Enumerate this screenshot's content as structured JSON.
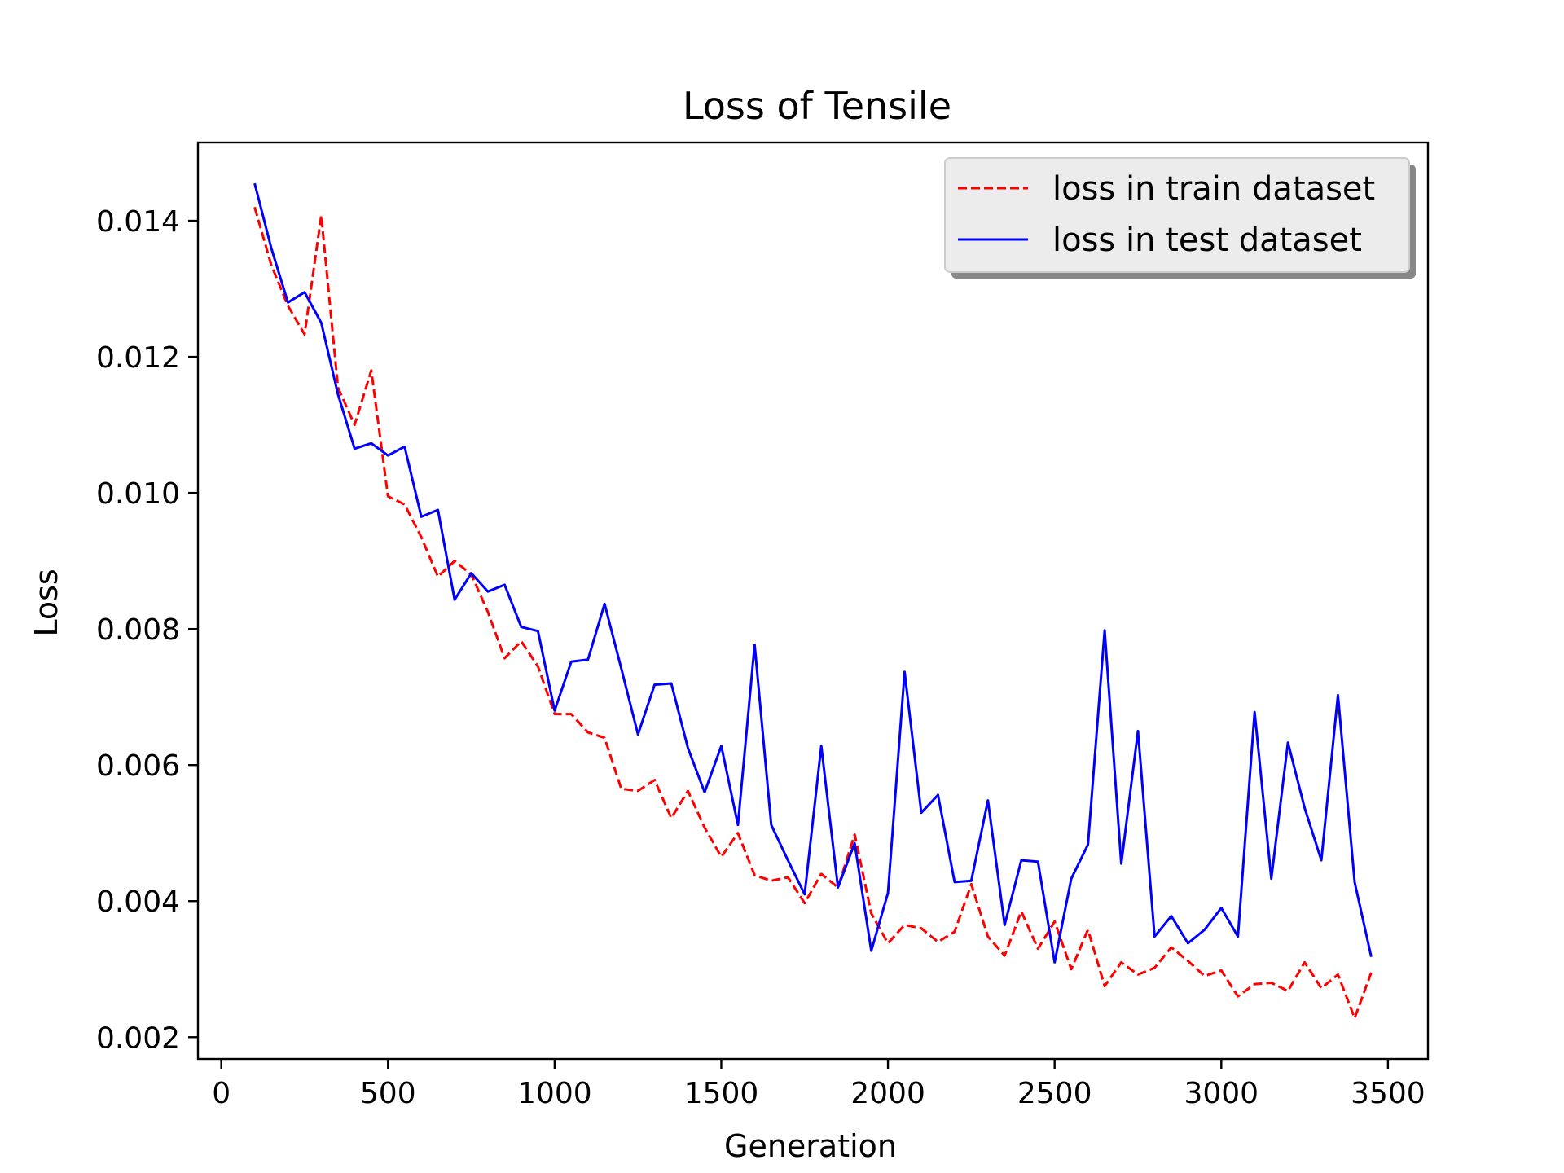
{
  "chart_data": {
    "type": "line",
    "title": "Loss of Tensile",
    "xlabel": "Generation",
    "ylabel": "Loss",
    "xlim": [
      -70,
      3620
    ],
    "ylim": [
      0.00168,
      0.01515
    ],
    "xticks": [
      0,
      500,
      1000,
      1500,
      2000,
      2500,
      3000,
      3500
    ],
    "xtick_labels": [
      "0",
      "500",
      "1000",
      "1500",
      "2000",
      "2500",
      "3000",
      "3500"
    ],
    "yticks": [
      0.002,
      0.004,
      0.006,
      0.008,
      0.01,
      0.012,
      0.014
    ],
    "ytick_labels": [
      "0.002",
      "0.004",
      "0.006",
      "0.008",
      "0.010",
      "0.012",
      "0.014"
    ],
    "grid": false,
    "legend_position": "upper right",
    "x": [
      100,
      150,
      200,
      250,
      300,
      350,
      400,
      450,
      500,
      550,
      600,
      650,
      700,
      750,
      800,
      850,
      900,
      950,
      1000,
      1050,
      1100,
      1150,
      1200,
      1250,
      1300,
      1350,
      1400,
      1450,
      1500,
      1550,
      1600,
      1650,
      1700,
      1750,
      1800,
      1850,
      1900,
      1950,
      2000,
      2050,
      2100,
      2150,
      2200,
      2250,
      2300,
      2350,
      2400,
      2450,
      2500,
      2550,
      2600,
      2650,
      2700,
      2750,
      2800,
      2850,
      2900,
      2950,
      3000,
      3050,
      3100,
      3150,
      3200,
      3250,
      3300,
      3350,
      3400,
      3450
    ],
    "series": [
      {
        "name": "loss in train dataset",
        "color": "#ff0000",
        "style": "dashed",
        "values": [
          0.0142,
          0.01335,
          0.01275,
          0.01233,
          0.01408,
          0.01155,
          0.011,
          0.0118,
          0.00995,
          0.00983,
          0.00935,
          0.00877,
          0.009,
          0.0088,
          0.00825,
          0.00757,
          0.00782,
          0.00745,
          0.00675,
          0.00675,
          0.00648,
          0.0064,
          0.00565,
          0.00562,
          0.00578,
          0.00522,
          0.00562,
          0.00508,
          0.00465,
          0.005,
          0.00438,
          0.0043,
          0.00435,
          0.00397,
          0.0044,
          0.0042,
          0.00498,
          0.00382,
          0.00338,
          0.00365,
          0.0036,
          0.0034,
          0.00355,
          0.00425,
          0.00348,
          0.0032,
          0.00385,
          0.0033,
          0.0037,
          0.003,
          0.00358,
          0.00275,
          0.0031,
          0.00292,
          0.00302,
          0.00332,
          0.00312,
          0.0029,
          0.00298,
          0.0026,
          0.00278,
          0.0028,
          0.00268,
          0.0031,
          0.00272,
          0.00292,
          0.00228,
          0.00295
        ]
      },
      {
        "name": "loss in test dataset",
        "color": "#0000ff",
        "style": "solid",
        "values": [
          0.01455,
          0.0136,
          0.0128,
          0.01295,
          0.0125,
          0.01145,
          0.01065,
          0.01073,
          0.01055,
          0.01068,
          0.00965,
          0.00975,
          0.00843,
          0.00882,
          0.00855,
          0.00865,
          0.00803,
          0.00797,
          0.0068,
          0.00752,
          0.00755,
          0.00837,
          0.00742,
          0.00645,
          0.00718,
          0.0072,
          0.00625,
          0.0056,
          0.00628,
          0.00512,
          0.00777,
          0.00512,
          0.0046,
          0.0041,
          0.00628,
          0.0042,
          0.00485,
          0.00327,
          0.00412,
          0.00737,
          0.0053,
          0.00556,
          0.00428,
          0.0043,
          0.00548,
          0.00365,
          0.0046,
          0.00458,
          0.0031,
          0.00433,
          0.00483,
          0.00798,
          0.00455,
          0.0065,
          0.00348,
          0.00378,
          0.00338,
          0.00358,
          0.0039,
          0.00348,
          0.00678,
          0.00433,
          0.00633,
          0.00537,
          0.0046,
          0.00703,
          0.00428,
          0.00318
        ]
      }
    ]
  }
}
